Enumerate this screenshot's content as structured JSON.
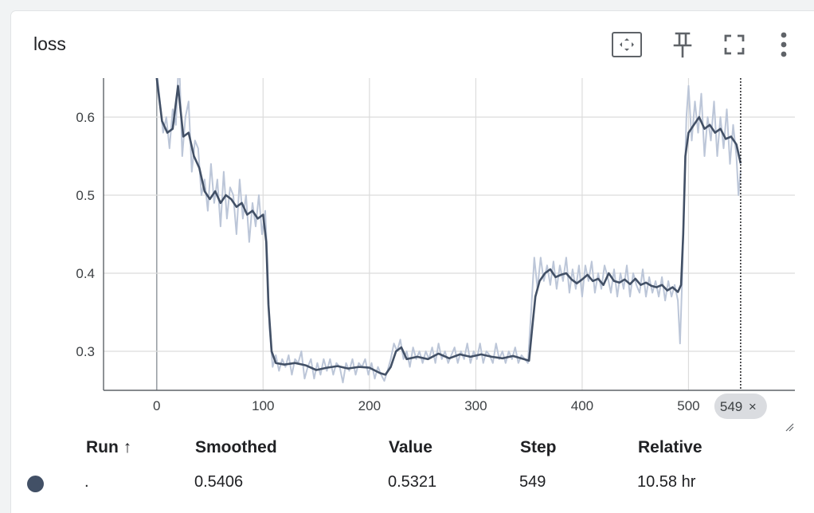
{
  "card": {
    "title": "loss",
    "icons": [
      "fit-domain-icon",
      "pin-icon",
      "fullscreen-icon",
      "more-vert-icon"
    ]
  },
  "chart_data": {
    "type": "line",
    "title": "loss",
    "xlabel": "",
    "ylabel": "",
    "xlim": [
      -50,
      600
    ],
    "ylim": [
      0.25,
      0.65
    ],
    "x_ticks": [
      "0",
      "100",
      "200",
      "300",
      "400",
      "500"
    ],
    "y_ticks": [
      "0.3",
      "0.4",
      "0.5",
      "0.6"
    ],
    "grid": true,
    "series_color": "#425066",
    "raw_color": "#bcc6d8",
    "hover_step": "549",
    "hover_close": "×",
    "smoothed_points": [
      [
        0,
        0.65
      ],
      [
        5,
        0.595
      ],
      [
        10,
        0.58
      ],
      [
        15,
        0.585
      ],
      [
        20,
        0.64
      ],
      [
        25,
        0.575
      ],
      [
        30,
        0.58
      ],
      [
        35,
        0.55
      ],
      [
        40,
        0.535
      ],
      [
        45,
        0.505
      ],
      [
        50,
        0.495
      ],
      [
        55,
        0.505
      ],
      [
        60,
        0.49
      ],
      [
        65,
        0.5
      ],
      [
        70,
        0.495
      ],
      [
        75,
        0.485
      ],
      [
        80,
        0.49
      ],
      [
        85,
        0.475
      ],
      [
        90,
        0.48
      ],
      [
        95,
        0.47
      ],
      [
        100,
        0.475
      ],
      [
        103,
        0.44
      ],
      [
        105,
        0.36
      ],
      [
        108,
        0.3
      ],
      [
        112,
        0.285
      ],
      [
        120,
        0.283
      ],
      [
        130,
        0.285
      ],
      [
        140,
        0.282
      ],
      [
        150,
        0.276
      ],
      [
        160,
        0.279
      ],
      [
        170,
        0.281
      ],
      [
        180,
        0.278
      ],
      [
        190,
        0.28
      ],
      [
        200,
        0.279
      ],
      [
        210,
        0.272
      ],
      [
        215,
        0.27
      ],
      [
        220,
        0.28
      ],
      [
        225,
        0.3
      ],
      [
        230,
        0.305
      ],
      [
        235,
        0.29
      ],
      [
        245,
        0.293
      ],
      [
        255,
        0.29
      ],
      [
        265,
        0.297
      ],
      [
        275,
        0.291
      ],
      [
        285,
        0.296
      ],
      [
        295,
        0.293
      ],
      [
        305,
        0.296
      ],
      [
        315,
        0.293
      ],
      [
        325,
        0.291
      ],
      [
        335,
        0.294
      ],
      [
        345,
        0.29
      ],
      [
        350,
        0.288
      ],
      [
        353,
        0.33
      ],
      [
        356,
        0.37
      ],
      [
        360,
        0.39
      ],
      [
        365,
        0.4
      ],
      [
        370,
        0.405
      ],
      [
        375,
        0.395
      ],
      [
        380,
        0.398
      ],
      [
        385,
        0.4
      ],
      [
        390,
        0.392
      ],
      [
        395,
        0.387
      ],
      [
        400,
        0.392
      ],
      [
        405,
        0.398
      ],
      [
        410,
        0.39
      ],
      [
        415,
        0.393
      ],
      [
        420,
        0.385
      ],
      [
        425,
        0.4
      ],
      [
        430,
        0.39
      ],
      [
        435,
        0.388
      ],
      [
        440,
        0.392
      ],
      [
        445,
        0.386
      ],
      [
        450,
        0.393
      ],
      [
        455,
        0.385
      ],
      [
        460,
        0.388
      ],
      [
        465,
        0.384
      ],
      [
        470,
        0.382
      ],
      [
        475,
        0.385
      ],
      [
        480,
        0.378
      ],
      [
        485,
        0.382
      ],
      [
        490,
        0.376
      ],
      [
        493,
        0.385
      ],
      [
        495,
        0.45
      ],
      [
        497,
        0.55
      ],
      [
        500,
        0.58
      ],
      [
        505,
        0.59
      ],
      [
        510,
        0.6
      ],
      [
        515,
        0.585
      ],
      [
        520,
        0.59
      ],
      [
        525,
        0.58
      ],
      [
        530,
        0.585
      ],
      [
        535,
        0.572
      ],
      [
        540,
        0.575
      ],
      [
        545,
        0.565
      ],
      [
        549,
        0.5406
      ]
    ],
    "raw_points": [
      [
        0,
        0.66
      ],
      [
        3,
        0.62
      ],
      [
        6,
        0.58
      ],
      [
        9,
        0.6
      ],
      [
        12,
        0.56
      ],
      [
        15,
        0.61
      ],
      [
        18,
        0.59
      ],
      [
        21,
        0.68
      ],
      [
        24,
        0.55
      ],
      [
        27,
        0.6
      ],
      [
        30,
        0.62
      ],
      [
        33,
        0.53
      ],
      [
        36,
        0.57
      ],
      [
        39,
        0.56
      ],
      [
        42,
        0.5
      ],
      [
        45,
        0.52
      ],
      [
        48,
        0.48
      ],
      [
        51,
        0.54
      ],
      [
        54,
        0.49
      ],
      [
        57,
        0.52
      ],
      [
        60,
        0.46
      ],
      [
        63,
        0.53
      ],
      [
        66,
        0.47
      ],
      [
        69,
        0.51
      ],
      [
        72,
        0.5
      ],
      [
        75,
        0.45
      ],
      [
        78,
        0.52
      ],
      [
        81,
        0.47
      ],
      [
        84,
        0.5
      ],
      [
        87,
        0.44
      ],
      [
        90,
        0.49
      ],
      [
        93,
        0.46
      ],
      [
        96,
        0.5
      ],
      [
        99,
        0.45
      ],
      [
        102,
        0.48
      ],
      [
        104,
        0.42
      ],
      [
        106,
        0.33
      ],
      [
        109,
        0.28
      ],
      [
        112,
        0.295
      ],
      [
        115,
        0.275
      ],
      [
        118,
        0.29
      ],
      [
        121,
        0.28
      ],
      [
        124,
        0.295
      ],
      [
        127,
        0.27
      ],
      [
        130,
        0.29
      ],
      [
        133,
        0.285
      ],
      [
        136,
        0.3
      ],
      [
        139,
        0.265
      ],
      [
        142,
        0.28
      ],
      [
        145,
        0.29
      ],
      [
        148,
        0.265
      ],
      [
        151,
        0.285
      ],
      [
        154,
        0.27
      ],
      [
        157,
        0.29
      ],
      [
        160,
        0.275
      ],
      [
        163,
        0.29
      ],
      [
        166,
        0.27
      ],
      [
        169,
        0.285
      ],
      [
        172,
        0.28
      ],
      [
        175,
        0.26
      ],
      [
        178,
        0.285
      ],
      [
        181,
        0.275
      ],
      [
        184,
        0.29
      ],
      [
        187,
        0.27
      ],
      [
        190,
        0.285
      ],
      [
        193,
        0.28
      ],
      [
        196,
        0.29
      ],
      [
        199,
        0.27
      ],
      [
        202,
        0.285
      ],
      [
        205,
        0.265
      ],
      [
        208,
        0.28
      ],
      [
        211,
        0.27
      ],
      [
        214,
        0.262
      ],
      [
        217,
        0.275
      ],
      [
        220,
        0.29
      ],
      [
        223,
        0.31
      ],
      [
        226,
        0.3
      ],
      [
        229,
        0.315
      ],
      [
        232,
        0.29
      ],
      [
        235,
        0.3
      ],
      [
        238,
        0.28
      ],
      [
        241,
        0.305
      ],
      [
        244,
        0.29
      ],
      [
        247,
        0.3
      ],
      [
        250,
        0.285
      ],
      [
        253,
        0.3
      ],
      [
        256,
        0.29
      ],
      [
        259,
        0.305
      ],
      [
        262,
        0.285
      ],
      [
        265,
        0.31
      ],
      [
        268,
        0.29
      ],
      [
        271,
        0.3
      ],
      [
        274,
        0.285
      ],
      [
        277,
        0.295
      ],
      [
        280,
        0.305
      ],
      [
        283,
        0.285
      ],
      [
        286,
        0.3
      ],
      [
        289,
        0.29
      ],
      [
        292,
        0.31
      ],
      [
        295,
        0.285
      ],
      [
        298,
        0.3
      ],
      [
        301,
        0.29
      ],
      [
        304,
        0.31
      ],
      [
        307,
        0.285
      ],
      [
        310,
        0.3
      ],
      [
        313,
        0.295
      ],
      [
        316,
        0.285
      ],
      [
        319,
        0.31
      ],
      [
        322,
        0.29
      ],
      [
        325,
        0.3
      ],
      [
        328,
        0.285
      ],
      [
        331,
        0.3
      ],
      [
        334,
        0.29
      ],
      [
        337,
        0.305
      ],
      [
        340,
        0.285
      ],
      [
        343,
        0.295
      ],
      [
        346,
        0.29
      ],
      [
        349,
        0.285
      ],
      [
        352,
        0.35
      ],
      [
        355,
        0.42
      ],
      [
        358,
        0.38
      ],
      [
        361,
        0.42
      ],
      [
        364,
        0.39
      ],
      [
        367,
        0.41
      ],
      [
        370,
        0.385
      ],
      [
        373,
        0.415
      ],
      [
        376,
        0.38
      ],
      [
        379,
        0.41
      ],
      [
        382,
        0.39
      ],
      [
        385,
        0.42
      ],
      [
        388,
        0.375
      ],
      [
        391,
        0.405
      ],
      [
        394,
        0.38
      ],
      [
        397,
        0.41
      ],
      [
        400,
        0.37
      ],
      [
        403,
        0.41
      ],
      [
        406,
        0.39
      ],
      [
        409,
        0.415
      ],
      [
        412,
        0.375
      ],
      [
        415,
        0.4
      ],
      [
        418,
        0.38
      ],
      [
        421,
        0.41
      ],
      [
        424,
        0.395
      ],
      [
        427,
        0.375
      ],
      [
        430,
        0.405
      ],
      [
        433,
        0.37
      ],
      [
        436,
        0.4
      ],
      [
        439,
        0.38
      ],
      [
        442,
        0.41
      ],
      [
        445,
        0.37
      ],
      [
        448,
        0.4
      ],
      [
        451,
        0.385
      ],
      [
        454,
        0.375
      ],
      [
        457,
        0.405
      ],
      [
        460,
        0.37
      ],
      [
        463,
        0.395
      ],
      [
        466,
        0.375
      ],
      [
        469,
        0.39
      ],
      [
        472,
        0.37
      ],
      [
        475,
        0.395
      ],
      [
        478,
        0.365
      ],
      [
        481,
        0.39
      ],
      [
        484,
        0.37
      ],
      [
        487,
        0.385
      ],
      [
        490,
        0.365
      ],
      [
        492,
        0.31
      ],
      [
        494,
        0.39
      ],
      [
        496,
        0.5
      ],
      [
        498,
        0.6
      ],
      [
        500,
        0.64
      ],
      [
        503,
        0.57
      ],
      [
        506,
        0.62
      ],
      [
        509,
        0.58
      ],
      [
        512,
        0.63
      ],
      [
        515,
        0.55
      ],
      [
        518,
        0.6
      ],
      [
        521,
        0.57
      ],
      [
        524,
        0.62
      ],
      [
        527,
        0.55
      ],
      [
        530,
        0.6
      ],
      [
        533,
        0.56
      ],
      [
        536,
        0.61
      ],
      [
        539,
        0.54
      ],
      [
        542,
        0.59
      ],
      [
        545,
        0.55
      ],
      [
        547,
        0.5
      ],
      [
        549,
        0.5321
      ]
    ]
  },
  "table": {
    "headers": {
      "run": "Run ↑",
      "smoothed": "Smoothed",
      "value": "Value",
      "step": "Step",
      "relative": "Relative"
    },
    "row": {
      "color": "#425066",
      "run": ".",
      "smoothed": "0.5406",
      "value": "0.5321",
      "step": "549",
      "relative": "10.58 hr"
    }
  }
}
